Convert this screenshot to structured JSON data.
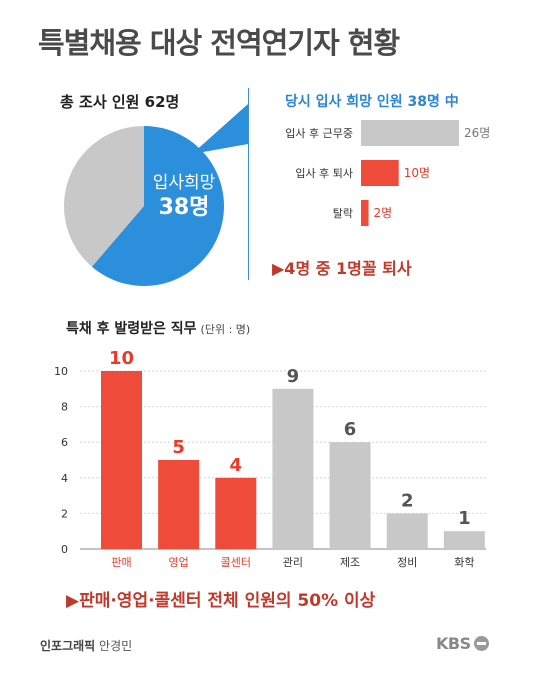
{
  "title": "특별채용 대상 전역연기자 현황",
  "pie": {
    "caption": "총 조사 인원 62명",
    "highlight_label": "입사희망",
    "highlight_value": "38명",
    "colors": {
      "highlight": "#2b8fdc",
      "rest": "#c8c8c8"
    }
  },
  "hbar": {
    "caption": "당시 입사 희망 인원 38명 中",
    "note": "▶4명 중 1명꼴 퇴사"
  },
  "vbar": {
    "caption": "특채 후 발령받은 직무",
    "unit": "(단위 : 명)",
    "note": "▶판매·영업·콜센터 전체 인원의 50% 이상"
  },
  "footer": {
    "credit_label": "인포그래픽",
    "credit_name": "안경민",
    "logo": "KBS"
  },
  "chart_data": [
    {
      "type": "pie",
      "total": 62,
      "slices": [
        {
          "label": "입사희망",
          "value": 38,
          "color": "#2b8fdc"
        },
        {
          "label": "",
          "value": 24,
          "color": "#c8c8c8"
        }
      ]
    },
    {
      "type": "bar",
      "orientation": "horizontal",
      "categories": [
        "입사 후 근무중",
        "입사 후 퇴사",
        "탈락"
      ],
      "values": [
        26,
        10,
        2
      ],
      "value_labels": [
        "26명",
        "10명",
        "2명"
      ],
      "colors": [
        "#c8c8c8",
        "#ef4b3a",
        "#ef4b3a"
      ]
    },
    {
      "type": "bar",
      "categories": [
        "판매",
        "영업",
        "콜센터",
        "관리",
        "제조",
        "정비",
        "화학"
      ],
      "values": [
        10,
        5,
        4,
        9,
        6,
        2,
        1
      ],
      "colors": [
        "#ef4b3a",
        "#ef4b3a",
        "#ef4b3a",
        "#c8c8c8",
        "#c8c8c8",
        "#c8c8c8",
        "#c8c8c8"
      ],
      "ylim": [
        0,
        10
      ],
      "yticks": [
        0,
        2,
        4,
        6,
        8,
        10
      ],
      "grid": true
    }
  ]
}
